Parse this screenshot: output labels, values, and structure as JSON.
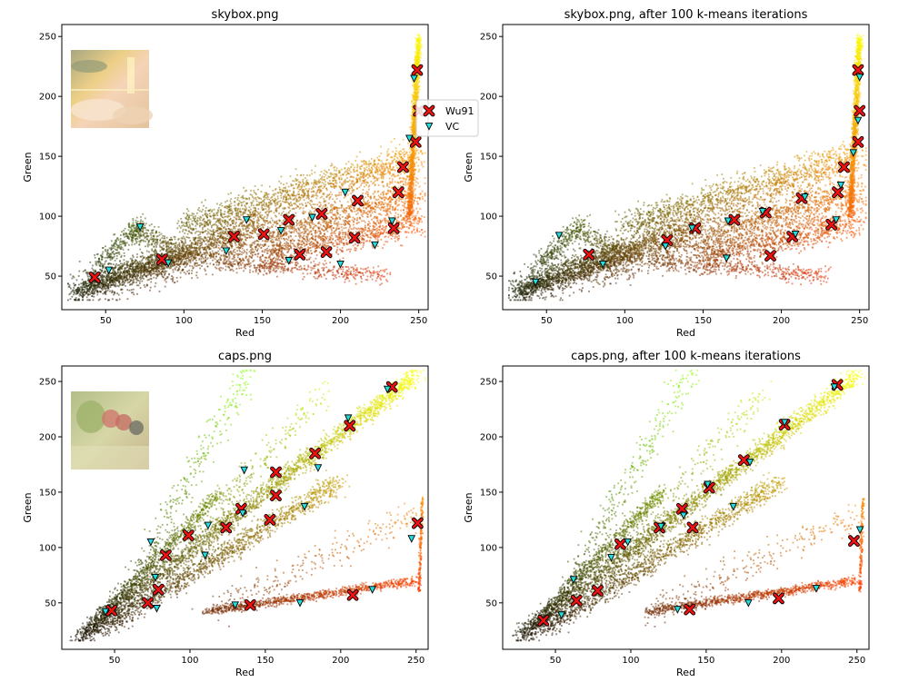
{
  "colors": {
    "wu91_marker": "#ee1111",
    "vc_marker": "#22dddd",
    "marker_outline": "#000000",
    "axes": "#000000"
  },
  "legend": {
    "placement": "right of top-left panel",
    "entries": [
      {
        "label": "Wu91",
        "marker": "x",
        "color": "#ee1111"
      },
      {
        "label": "VC",
        "marker": "v",
        "color": "#22dddd"
      }
    ]
  },
  "chart_data": [
    {
      "type": "scatter",
      "title": "skybox.png",
      "xlabel": "Red",
      "ylabel": "Green",
      "xlim": [
        22,
        256
      ],
      "ylim": [
        22,
        260
      ],
      "xticks": [
        "50",
        "100",
        "150",
        "200",
        "250"
      ],
      "xtick_values": [
        50,
        100,
        150,
        200,
        250
      ],
      "yticks": [
        "50",
        "100",
        "150",
        "200",
        "250"
      ],
      "ytick_values": [
        50,
        100,
        150,
        200,
        250
      ],
      "thumbnail": "skybox",
      "cloud": "skybox",
      "series": [
        {
          "name": "Wu91",
          "marker": "x",
          "points": [
            [
              249,
              222
            ],
            [
              250,
              188
            ],
            [
              248,
              162
            ],
            [
              240,
              141
            ],
            [
              237,
              120
            ],
            [
              211,
              113
            ],
            [
              188,
              102
            ],
            [
              167,
              97
            ],
            [
              151,
              85
            ],
            [
              132,
              83
            ],
            [
              174,
              68
            ],
            [
              191,
              70
            ],
            [
              209,
              82
            ],
            [
              234,
              90
            ],
            [
              86,
              64
            ],
            [
              43,
              49
            ]
          ]
        },
        {
          "name": "VC",
          "marker": "v",
          "points": [
            [
              247,
              215
            ],
            [
              244,
              165
            ],
            [
              203,
              120
            ],
            [
              222,
              76
            ],
            [
              233,
              96
            ],
            [
              182,
              99
            ],
            [
              140,
              97
            ],
            [
              162,
              88
            ],
            [
              167,
              63
            ],
            [
              200,
              60
            ],
            [
              127,
              71
            ],
            [
              90,
              61
            ],
            [
              72,
              91
            ],
            [
              52,
              55
            ]
          ]
        }
      ]
    },
    {
      "type": "scatter",
      "title": "skybox.png, after 100 k-means iterations",
      "xlabel": "Red",
      "ylabel": "Green",
      "xlim": [
        22,
        256
      ],
      "ylim": [
        22,
        260
      ],
      "xtick_values": [
        50,
        100,
        150,
        200,
        250
      ],
      "ytick_values": [
        50,
        100,
        150,
        200,
        250
      ],
      "cloud": "skybox",
      "series": [
        {
          "name": "Wu91",
          "marker": "x",
          "points": [
            [
              249,
              222
            ],
            [
              250,
              188
            ],
            [
              249,
              162
            ],
            [
              240,
              141
            ],
            [
              236,
              120
            ],
            [
              213,
              115
            ],
            [
              190,
              103
            ],
            [
              170,
              97
            ],
            [
              145,
              90
            ],
            [
              127,
              80
            ],
            [
              207,
              83
            ],
            [
              232,
              93
            ],
            [
              193,
              67
            ],
            [
              77,
              68
            ]
          ]
        },
        {
          "name": "VC",
          "marker": "v",
          "points": [
            [
              250,
              216
            ],
            [
              249,
              180
            ],
            [
              246,
              153
            ],
            [
              238,
              126
            ],
            [
              215,
              116
            ],
            [
              235,
              97
            ],
            [
              188,
              104
            ],
            [
              166,
              96
            ],
            [
              143,
              90
            ],
            [
              126,
              75
            ],
            [
              209,
              85
            ],
            [
              165,
              65
            ],
            [
              86,
              60
            ],
            [
              58,
              84
            ],
            [
              43,
              45
            ]
          ]
        }
      ]
    },
    {
      "type": "scatter",
      "title": "caps.png",
      "xlabel": "Red",
      "ylabel": "Green",
      "xlim": [
        15,
        258
      ],
      "ylim": [
        8,
        264
      ],
      "xtick_values": [
        50,
        100,
        150,
        200,
        250
      ],
      "ytick_values": [
        50,
        100,
        150,
        200,
        250
      ],
      "thumbnail": "caps",
      "cloud": "caps",
      "series": [
        {
          "name": "Wu91",
          "marker": "x",
          "points": [
            [
              234,
              245
            ],
            [
              206,
              210
            ],
            [
              183,
              185
            ],
            [
              157,
              168
            ],
            [
              157,
              147
            ],
            [
              134,
              135
            ],
            [
              124,
              118
            ],
            [
              153,
              125
            ],
            [
              99,
              111
            ],
            [
              84,
              93
            ],
            [
              79,
              62
            ],
            [
              72,
              50
            ],
            [
              48,
              43
            ],
            [
              140,
              48
            ],
            [
              208,
              57
            ],
            [
              251,
              122
            ]
          ]
        },
        {
          "name": "VC",
          "marker": "v",
          "points": [
            [
              231,
              243
            ],
            [
              205,
              217
            ],
            [
              185,
              172
            ],
            [
              136,
              170
            ],
            [
              176,
              137
            ],
            [
              135,
              131
            ],
            [
              112,
              120
            ],
            [
              110,
              93
            ],
            [
              74,
              105
            ],
            [
              77,
              73
            ],
            [
              78,
              45
            ],
            [
              130,
              48
            ],
            [
              173,
              50
            ],
            [
              221,
              62
            ],
            [
              247,
              108
            ],
            [
              44,
              42
            ]
          ]
        }
      ]
    },
    {
      "type": "scatter",
      "title": "caps.png, after 100 k-means iterations",
      "xlabel": "Red",
      "ylabel": "Green",
      "xlim": [
        15,
        258
      ],
      "ylim": [
        8,
        264
      ],
      "xtick_values": [
        50,
        100,
        150,
        200,
        250
      ],
      "ytick_values": [
        50,
        100,
        150,
        200,
        250
      ],
      "cloud": "caps",
      "series": [
        {
          "name": "Wu91",
          "marker": "x",
          "points": [
            [
              237,
              247
            ],
            [
              202,
              211
            ],
            [
              175,
              179
            ],
            [
              152,
              154
            ],
            [
              134,
              135
            ],
            [
              141,
              118
            ],
            [
              119,
              118
            ],
            [
              93,
              103
            ],
            [
              78,
              61
            ],
            [
              64,
              52
            ],
            [
              42,
              34
            ],
            [
              139,
              44
            ],
            [
              198,
              54
            ],
            [
              248,
              106
            ]
          ]
        },
        {
          "name": "VC",
          "marker": "v",
          "points": [
            [
              235,
              245
            ],
            [
              202,
              213
            ],
            [
              179,
              177
            ],
            [
              151,
              157
            ],
            [
              168,
              137
            ],
            [
              135,
              129
            ],
            [
              120,
              119
            ],
            [
              98,
              105
            ],
            [
              87,
              91
            ],
            [
              62,
              71
            ],
            [
              54,
              39
            ],
            [
              131,
              44
            ],
            [
              178,
              50
            ],
            [
              223,
              63
            ],
            [
              252,
              116
            ]
          ]
        }
      ]
    }
  ]
}
